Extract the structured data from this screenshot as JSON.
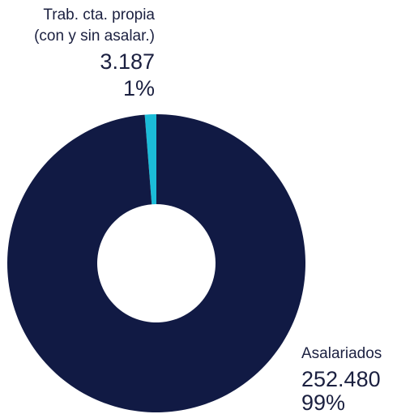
{
  "chart_data": {
    "type": "donut",
    "categories": [
      "Trab. cta. propia\n(con y sin asalar.)",
      "Asalariados"
    ],
    "values": [
      3187,
      252480
    ],
    "value_labels": [
      "3.187",
      "252.480"
    ],
    "percentages": [
      1,
      99
    ],
    "percentage_labels": [
      "1%",
      "99%"
    ],
    "colors": [
      "#1bbcd8",
      "#111a44"
    ]
  }
}
